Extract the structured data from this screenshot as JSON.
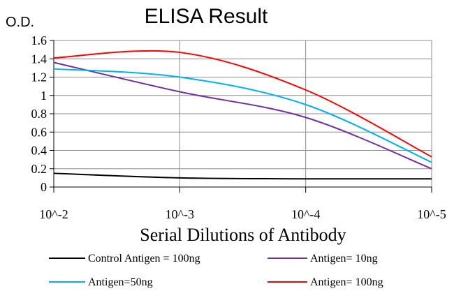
{
  "chart_data": {
    "type": "line",
    "title": "ELISA Result",
    "ylabel": "O.D.",
    "xlabel": "Serial Dilutions of Antibody",
    "categories": [
      "10^-2",
      "10^-3",
      "10^-4",
      "10^-5"
    ],
    "y_ticks": [
      "0",
      "0.2",
      "0.4",
      "0.6",
      "0.8",
      "1",
      "1.2",
      "1.4",
      "1.6"
    ],
    "ylim": [
      0,
      1.6
    ],
    "grid": "horizontal and vertical",
    "legend_position": "bottom",
    "series": [
      {
        "name": "Control Antigen = 100ng",
        "color": "#000000",
        "values": [
          0.15,
          0.1,
          0.09,
          0.09
        ]
      },
      {
        "name": "Antigen= 10ng",
        "color": "#7030A0",
        "values": [
          1.36,
          1.04,
          0.76,
          0.2
        ]
      },
      {
        "name": "Antigen=50ng",
        "color": "#00B0F0",
        "values": [
          1.29,
          1.2,
          0.9,
          0.27
        ]
      },
      {
        "name": "Antigen= 100ng",
        "color": "#FF0000",
        "values": [
          1.41,
          1.47,
          1.06,
          0.33
        ]
      }
    ]
  }
}
